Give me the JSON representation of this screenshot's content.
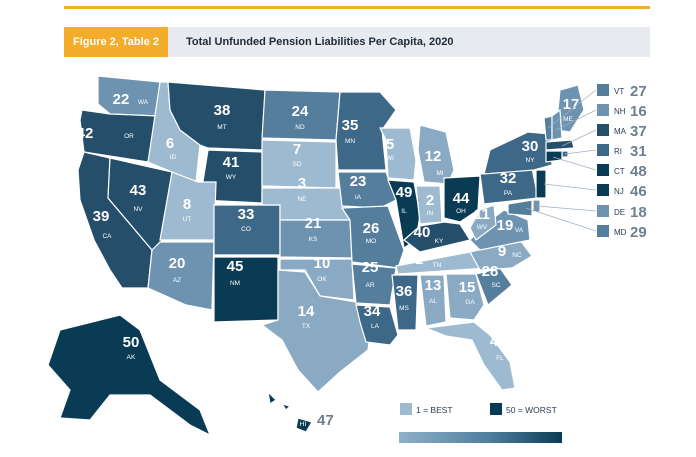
{
  "header": {
    "figure_label": "Figure 2, Table 2",
    "title": "Total Unfunded Pension Liabilities Per Capita, 2020"
  },
  "legend": {
    "best": "1 = BEST",
    "worst": "50 = WORST",
    "best_color": "#9dbad0",
    "worst_color": "#0a3b54"
  },
  "colors": {
    "accent": "#f3ad2b",
    "header_bg": "#e7eaee",
    "scale": [
      "#9dbad0",
      "#8aaac3",
      "#6e93b0",
      "#557e9d",
      "#3e6887",
      "#244e6a",
      "#0a3b54"
    ]
  },
  "chart_data": {
    "type": "choropleth",
    "metric": "rank",
    "states": [
      {
        "abbr": "WA",
        "rank": 22
      },
      {
        "abbr": "OR",
        "rank": 42
      },
      {
        "abbr": "CA",
        "rank": 39
      },
      {
        "abbr": "ID",
        "rank": 6
      },
      {
        "abbr": "NV",
        "rank": 43
      },
      {
        "abbr": "MT",
        "rank": 38
      },
      {
        "abbr": "WY",
        "rank": 41
      },
      {
        "abbr": "UT",
        "rank": 8
      },
      {
        "abbr": "AZ",
        "rank": 20
      },
      {
        "abbr": "CO",
        "rank": 33
      },
      {
        "abbr": "NM",
        "rank": 45
      },
      {
        "abbr": "ND",
        "rank": 24
      },
      {
        "abbr": "SD",
        "rank": 7
      },
      {
        "abbr": "NE",
        "rank": 3
      },
      {
        "abbr": "KS",
        "rank": 21
      },
      {
        "abbr": "OK",
        "rank": 10
      },
      {
        "abbr": "TX",
        "rank": 14
      },
      {
        "abbr": "MN",
        "rank": 35
      },
      {
        "abbr": "IA",
        "rank": 23
      },
      {
        "abbr": "MO",
        "rank": 26
      },
      {
        "abbr": "AR",
        "rank": 25
      },
      {
        "abbr": "LA",
        "rank": 34
      },
      {
        "abbr": "WI",
        "rank": 5
      },
      {
        "abbr": "IL",
        "rank": 49
      },
      {
        "abbr": "MI",
        "rank": 12
      },
      {
        "abbr": "IN",
        "rank": 2
      },
      {
        "abbr": "OH",
        "rank": 44
      },
      {
        "abbr": "KY",
        "rank": 40
      },
      {
        "abbr": "TN",
        "rank": 1
      },
      {
        "abbr": "MS",
        "rank": 36
      },
      {
        "abbr": "AL",
        "rank": 13
      },
      {
        "abbr": "GA",
        "rank": 15
      },
      {
        "abbr": "FL",
        "rank": 4
      },
      {
        "abbr": "SC",
        "rank": 28
      },
      {
        "abbr": "NC",
        "rank": 9
      },
      {
        "abbr": "VA",
        "rank": 19
      },
      {
        "abbr": "WV",
        "rank": 11
      },
      {
        "abbr": "PA",
        "rank": 32
      },
      {
        "abbr": "NY",
        "rank": 30
      },
      {
        "abbr": "ME",
        "rank": 17
      },
      {
        "abbr": "VT",
        "rank": 27
      },
      {
        "abbr": "NH",
        "rank": 16
      },
      {
        "abbr": "MA",
        "rank": 37
      },
      {
        "abbr": "RI",
        "rank": 31
      },
      {
        "abbr": "CT",
        "rank": 48
      },
      {
        "abbr": "NJ",
        "rank": 46
      },
      {
        "abbr": "DE",
        "rank": 18
      },
      {
        "abbr": "MD",
        "rank": 29
      },
      {
        "abbr": "AK",
        "rank": 50
      },
      {
        "abbr": "HI",
        "rank": 47
      }
    ]
  }
}
